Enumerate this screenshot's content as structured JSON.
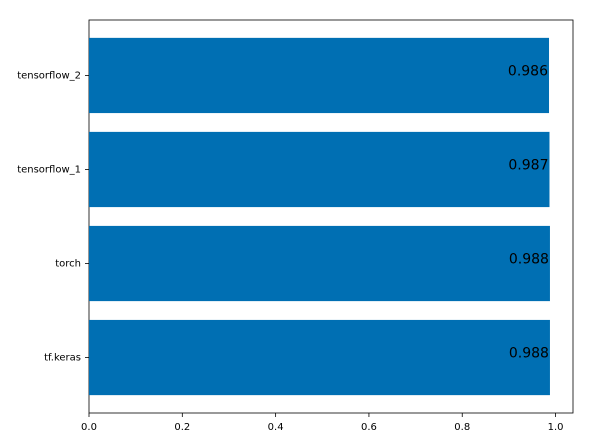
{
  "chart_data": {
    "type": "barh",
    "categories": [
      "tf.keras",
      "torch",
      "tensorflow_1",
      "tensorflow_2"
    ],
    "values": [
      0.988,
      0.988,
      0.987,
      0.986
    ],
    "color": "#006fb3",
    "xlim": [
      0,
      1.0374
    ],
    "xticks": [
      {
        "value": 0,
        "label": "0.0"
      },
      0.2,
      0.4,
      0.6,
      0.8,
      {
        "value": 1,
        "label": "1.0"
      }
    ]
  }
}
